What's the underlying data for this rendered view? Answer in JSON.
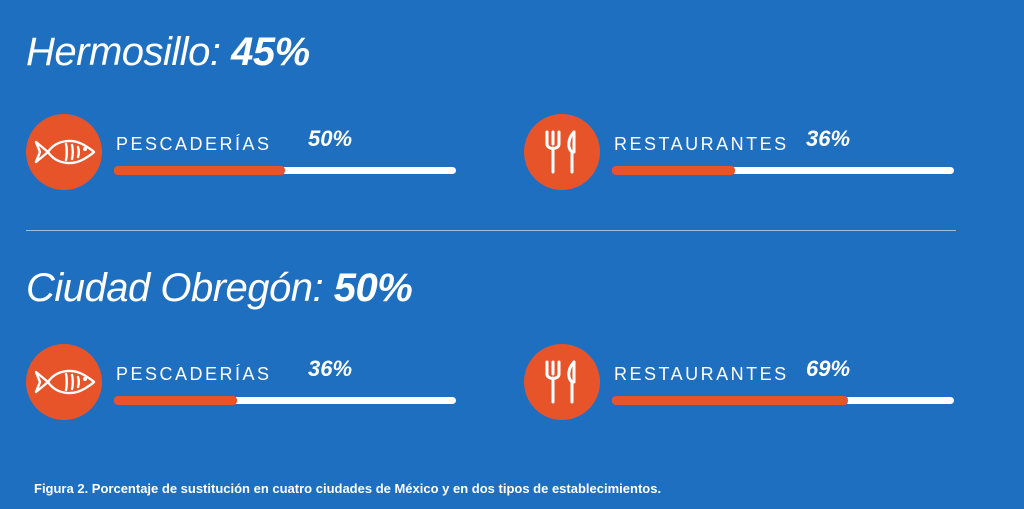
{
  "chart_data": {
    "type": "bar",
    "caption": "Figura 2. Porcentaje de sustitución en cuatro ciudades de México y en dos tipos de establecimientos.",
    "units": "%",
    "cities": [
      {
        "name": "Hermosillo:",
        "overall_label": "45%",
        "overall": 45,
        "categories": [
          {
            "label": "PESCADERÍAS",
            "value": 50,
            "value_label": "50%",
            "icon": "fish-icon"
          },
          {
            "label": "RESTAURANTES",
            "value": 36,
            "value_label": "36%",
            "icon": "fork-knife-icon"
          }
        ]
      },
      {
        "name": "Ciudad Obregón:",
        "overall_label": "50%",
        "overall": 50,
        "categories": [
          {
            "label": "PESCADERÍAS",
            "value": 36,
            "value_label": "36%",
            "icon": "fish-icon"
          },
          {
            "label": "RESTAURANTES",
            "value": 69,
            "value_label": "69%",
            "icon": "fork-knife-icon"
          }
        ]
      }
    ],
    "colors": {
      "background": "#1f6fc0",
      "accent": "#e8542a",
      "track": "#ffffff"
    }
  }
}
